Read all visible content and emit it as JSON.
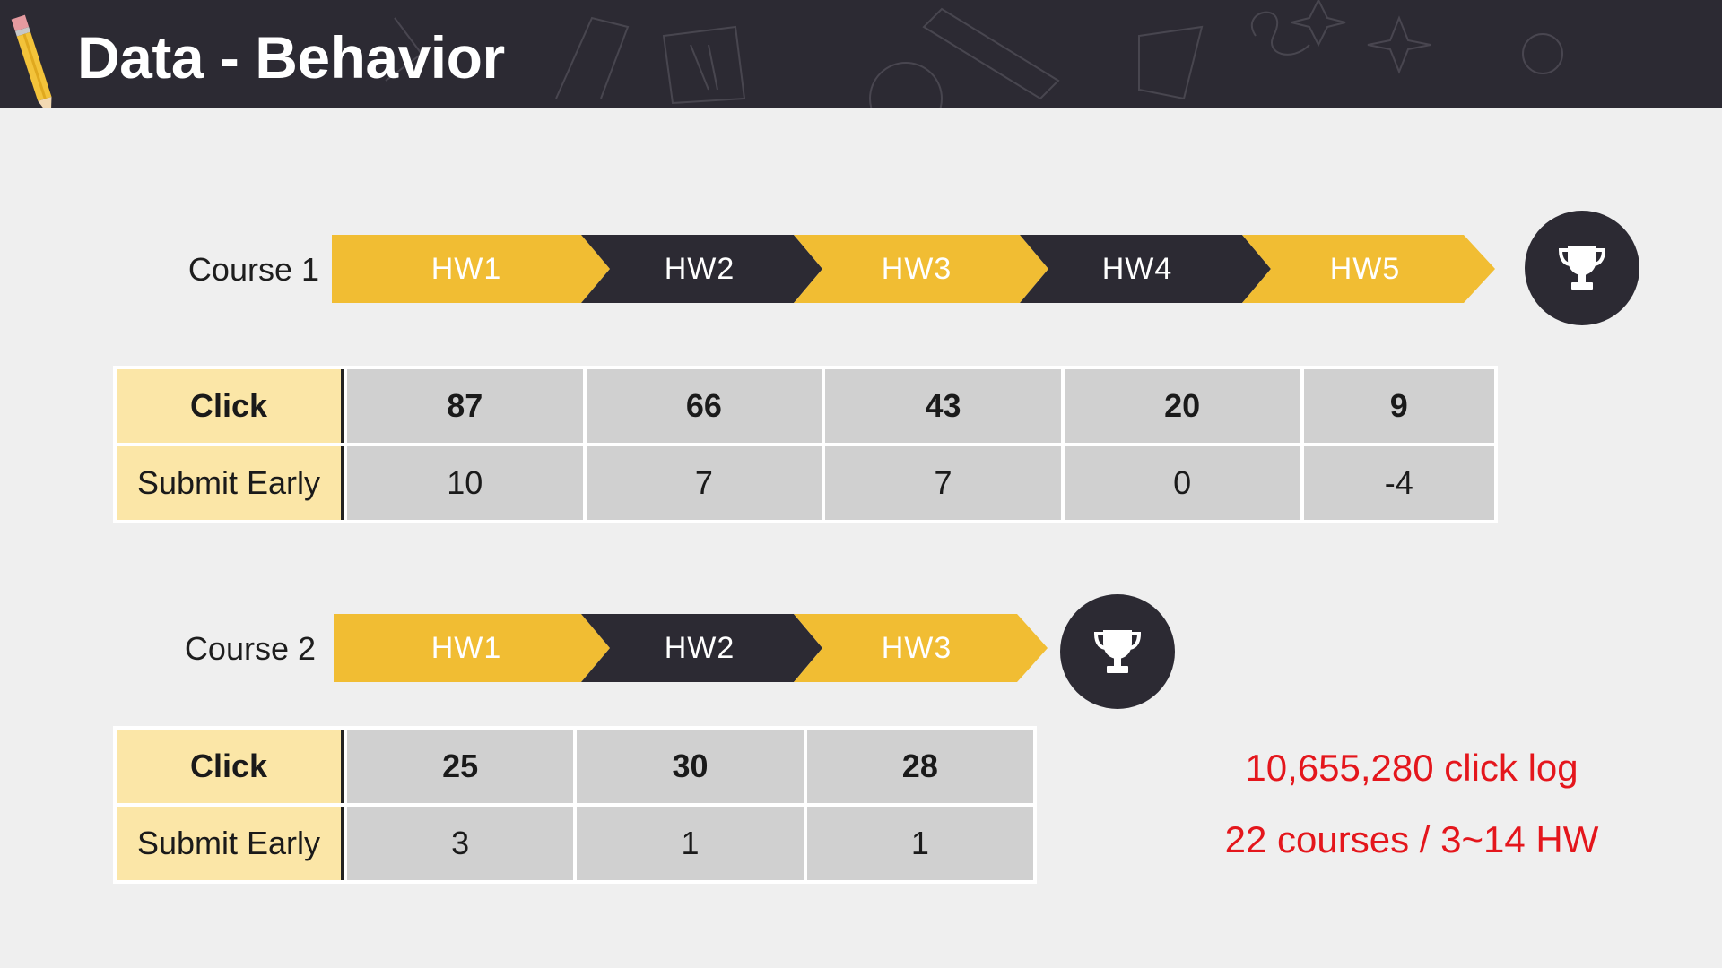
{
  "header": {
    "title": "Data - Behavior"
  },
  "course1": {
    "label": "Course 1",
    "homeworks": [
      "HW1",
      "HW2",
      "HW3",
      "HW4",
      "HW5"
    ],
    "table": {
      "rows": [
        {
          "label": "Click",
          "values": [
            "87",
            "66",
            "43",
            "20",
            "9"
          ]
        },
        {
          "label": "Submit Early",
          "values": [
            "10",
            "7",
            "7",
            "0",
            "-4"
          ]
        }
      ]
    }
  },
  "course2": {
    "label": "Course 2",
    "homeworks": [
      "HW1",
      "HW2",
      "HW3"
    ],
    "table": {
      "rows": [
        {
          "label": "Click",
          "values": [
            "25",
            "30",
            "28"
          ]
        },
        {
          "label": "Submit Early",
          "values": [
            "3",
            "1",
            "1"
          ]
        }
      ]
    }
  },
  "stats": {
    "click_log": "10,655,280 click log",
    "courses": "22 courses / 3~14 HW"
  },
  "colors": {
    "yellow": "#f1bd33",
    "dark": "#2c2a33",
    "accent_red": "#e4161c",
    "rowhead": "#fbe6a7",
    "cell": "#d0d0d0"
  },
  "icons": {
    "trophy": "trophy-icon",
    "pencil": "pencil-icon"
  }
}
